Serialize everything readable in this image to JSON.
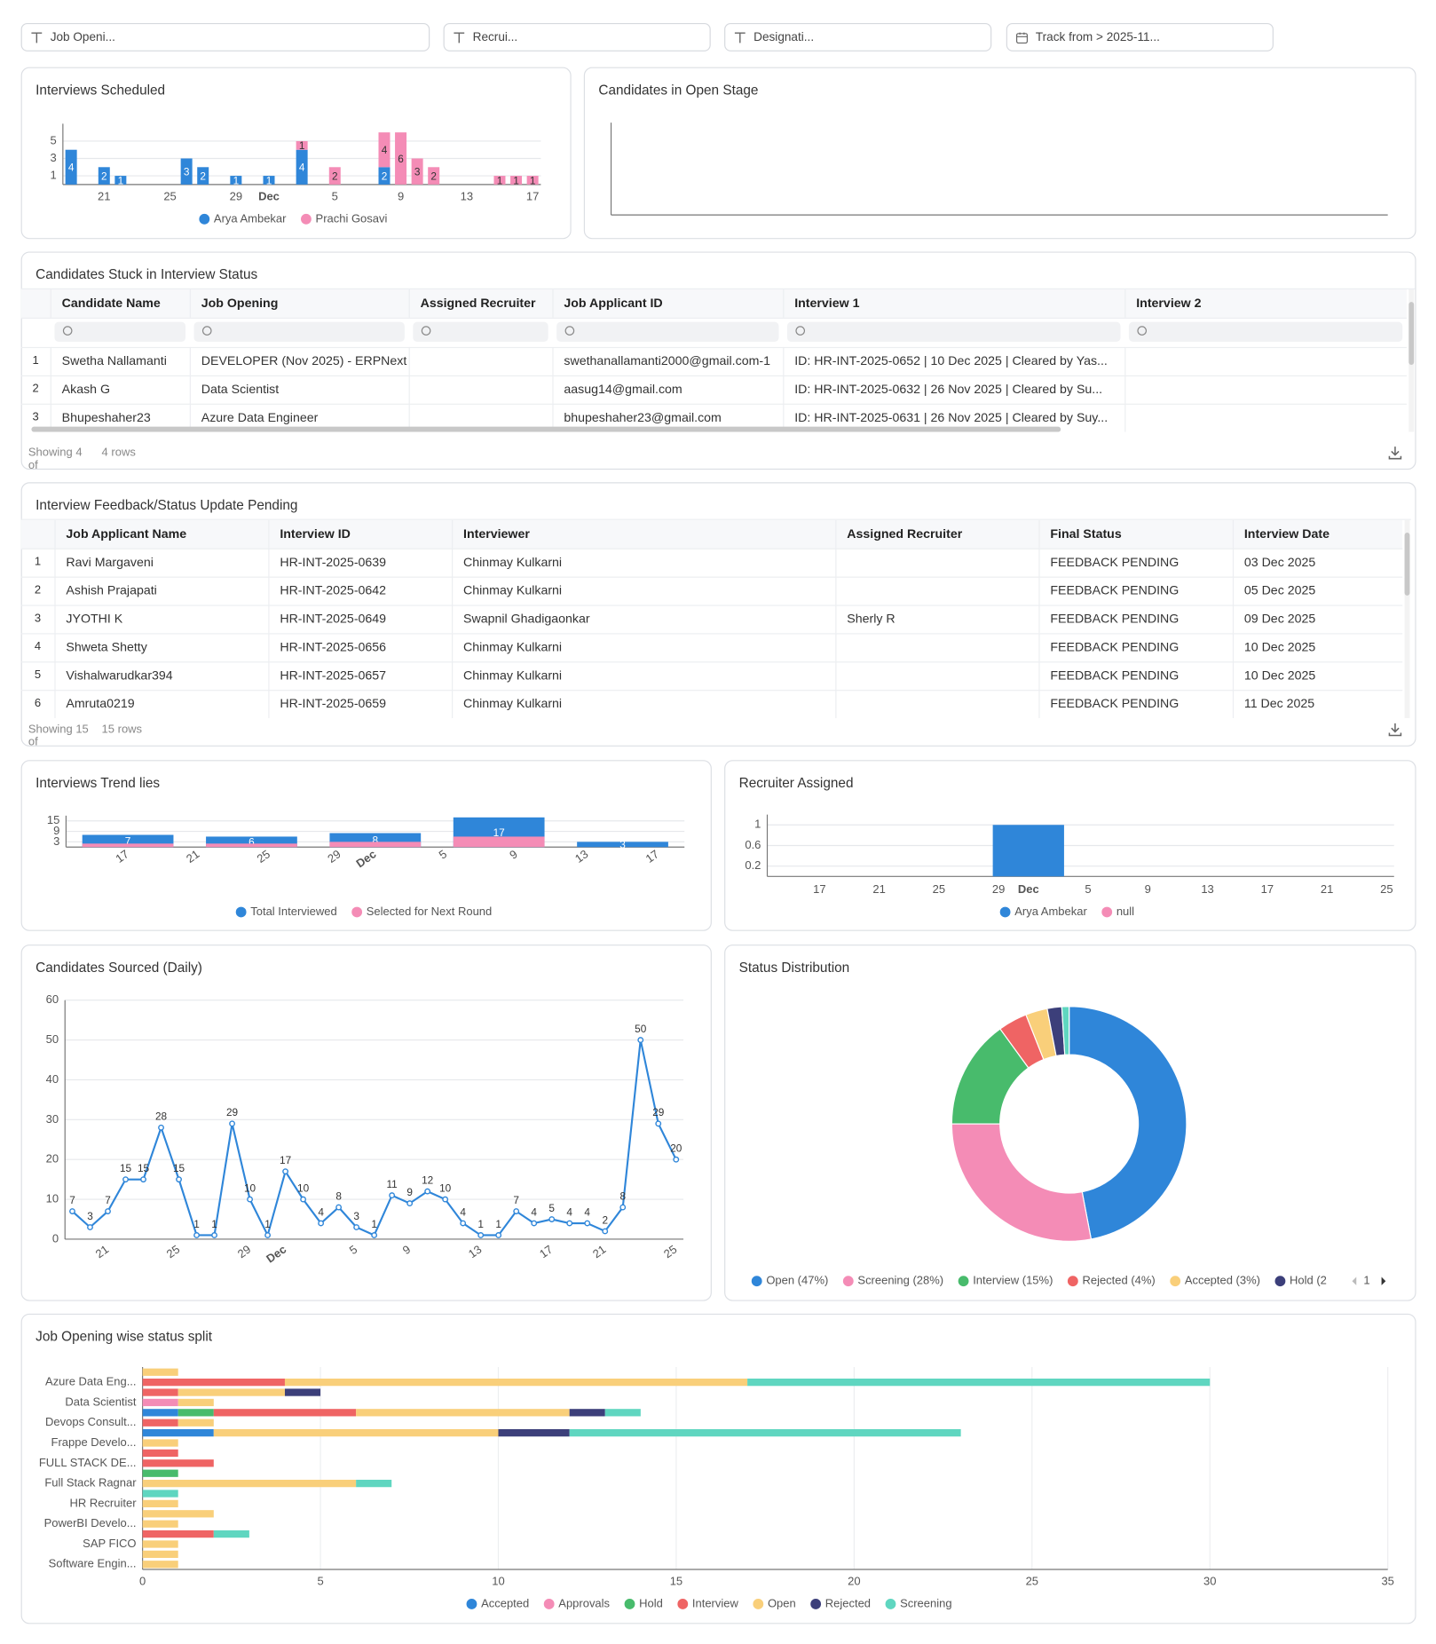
{
  "filters": [
    "Job Openi...",
    "Recrui...",
    "Designati...",
    "Track from > 2025-11..."
  ],
  "chart_data": [
    {
      "type": "bar",
      "title": "Interviews Scheduled",
      "stacked": true,
      "categories": [
        null,
        null,
        "21",
        null,
        null,
        null,
        "25",
        null,
        null,
        null,
        "29",
        null,
        "Dec",
        null,
        null,
        null,
        "5",
        null,
        null,
        null,
        "9",
        null,
        null,
        null,
        "13",
        null,
        null,
        null,
        "17"
      ],
      "series": [
        {
          "name": "Arya Ambekar",
          "color": "#2f86d9",
          "data_labels": true,
          "values": [
            4,
            null,
            2,
            1,
            null,
            null,
            null,
            3,
            2,
            null,
            1,
            null,
            1,
            null,
            4,
            null,
            null,
            null,
            null,
            2,
            null,
            null,
            null,
            null,
            null,
            null,
            null,
            null,
            null
          ]
        },
        {
          "name": "Prachi Gosavi",
          "color": "#f48cb6",
          "data_labels": true,
          "values": [
            null,
            null,
            null,
            null,
            null,
            null,
            null,
            null,
            null,
            null,
            null,
            null,
            null,
            null,
            1,
            null,
            2,
            null,
            null,
            4,
            6,
            3,
            2,
            null,
            null,
            null,
            1,
            1,
            1
          ]
        }
      ],
      "ylim": [
        0,
        7
      ],
      "yticks": [
        1,
        3,
        5
      ],
      "grid": true
    },
    {
      "type": "bar",
      "title": "Candidates in Open Stage"
    },
    {
      "type": "bar",
      "title": "Interviews Trend lies",
      "categories": [
        null,
        null,
        null,
        "17",
        null,
        null,
        null,
        "21",
        null,
        null,
        null,
        "25",
        null,
        null,
        null,
        "29",
        null,
        "Dec",
        null,
        null,
        null,
        "5",
        null,
        null,
        null,
        "9",
        null,
        null,
        null,
        "13",
        null,
        null,
        null,
        "17",
        null
      ],
      "series": [
        {
          "name": "Total Interviewed",
          "color": "#2f86d9",
          "data_labels": true,
          "values": [
            null,
            null,
            null,
            7,
            null,
            null,
            null,
            null,
            null,
            null,
            6,
            null,
            null,
            null,
            null,
            null,
            null,
            8,
            null,
            null,
            null,
            null,
            null,
            null,
            17,
            null,
            null,
            null,
            null,
            null,
            null,
            3,
            null,
            null,
            null
          ]
        },
        {
          "name": "Selected for Next Round",
          "color": "#f48cb6",
          "values": [
            null,
            null,
            null,
            2,
            null,
            null,
            null,
            null,
            null,
            null,
            2,
            null,
            null,
            null,
            null,
            null,
            null,
            3,
            null,
            null,
            null,
            null,
            null,
            null,
            6,
            null,
            null,
            null,
            null,
            null,
            null,
            null,
            null,
            null,
            null
          ]
        }
      ],
      "ylim": [
        0,
        18
      ],
      "yticks": [
        3,
        9,
        15
      ],
      "grid": true
    },
    {
      "type": "bar",
      "title": "Recruiter Assigned",
      "categories": [
        null,
        null,
        null,
        "17",
        null,
        null,
        null,
        "21",
        null,
        null,
        null,
        "25",
        null,
        null,
        null,
        "29",
        null,
        "Dec",
        null,
        null,
        null,
        "5",
        null,
        null,
        null,
        "9",
        null,
        null,
        null,
        "13",
        null,
        null,
        null,
        "17",
        null,
        null,
        null,
        "21",
        null,
        null,
        null,
        "25"
      ],
      "series": [
        {
          "name": "Arya Ambekar",
          "color": "#2f86d9",
          "values": [
            null,
            null,
            null,
            null,
            null,
            null,
            null,
            null,
            null,
            null,
            null,
            null,
            null,
            null,
            null,
            null,
            null,
            1,
            null,
            null,
            null,
            null,
            null,
            null,
            null,
            null,
            null,
            null,
            null,
            null,
            null,
            null,
            null,
            null,
            null,
            null,
            null,
            null,
            null,
            null,
            null,
            null
          ]
        },
        {
          "name": "null",
          "color": "#f48cb6",
          "values": [
            null,
            null,
            null,
            null,
            null,
            null,
            null,
            null,
            null,
            null,
            null,
            null,
            null,
            null,
            null,
            null,
            null,
            null,
            null,
            null,
            null,
            null,
            null,
            null,
            null,
            null,
            null,
            null,
            null,
            null,
            null,
            null,
            null,
            null,
            null,
            null,
            null,
            null,
            null,
            null,
            null,
            null
          ]
        }
      ],
      "ylim": [
        0,
        1.2
      ],
      "yticks": [
        0.2,
        0.6,
        1
      ],
      "grid": true
    },
    {
      "type": "line",
      "title": "Candidates Sourced (Daily)",
      "color": "#2f86d9",
      "data_labels": true,
      "categories": [
        null,
        null,
        "21",
        null,
        null,
        null,
        "25",
        null,
        null,
        null,
        "29",
        null,
        "Dec",
        null,
        null,
        null,
        "5",
        null,
        null,
        "9",
        null,
        null,
        null,
        "13",
        null,
        null,
        null,
        "17",
        null,
        null,
        "21",
        null,
        null,
        null,
        "25"
      ],
      "values": [
        7,
        3,
        7,
        15,
        15,
        28,
        15,
        1,
        1,
        29,
        10,
        1,
        17,
        10,
        4,
        8,
        3,
        1,
        11,
        9,
        12,
        10,
        4,
        1,
        1,
        7,
        4,
        5,
        4,
        4,
        2,
        8,
        50,
        29,
        20
      ],
      "ylim": [
        0,
        60
      ],
      "yticks": [
        0,
        10,
        20,
        30,
        40,
        50,
        60
      ],
      "grid": true
    },
    {
      "type": "donut",
      "title": "Status Distribution",
      "categories": [
        "Open (47%)",
        "Screening (28%)",
        "Interview (15%)",
        "Rejected (4%)",
        "Accepted (3%)",
        "Hold (2",
        null
      ],
      "values": [
        47,
        28,
        15,
        4,
        3,
        2,
        1
      ],
      "colors": [
        "#2f86d9",
        "#f48cb6",
        "#48bb6c",
        "#ef6464",
        "#f9cf7a",
        "#3c3f7a",
        "#5fd6c0"
      ],
      "legend_page": 1
    },
    {
      "type": "bar",
      "orientation": "horizontal",
      "stacked": true,
      "title": "Job Opening wise status split",
      "categories": [
        null,
        "Azure Data Eng...",
        null,
        "Data Scientist",
        null,
        "Devops Consult...",
        null,
        "Frappe Develo...",
        null,
        "FULL STACK DE...",
        null,
        "Full Stack Ragnar",
        null,
        "HR Recruiter",
        null,
        "PowerBI Develo...",
        null,
        "SAP FICO",
        null,
        "Software Engin..."
      ],
      "series": [
        {
          "name": "Accepted",
          "color": "#2f86d9",
          "values": [
            null,
            null,
            null,
            null,
            1,
            null,
            2,
            null,
            null,
            null,
            null,
            null,
            null,
            null,
            null,
            null,
            null,
            null,
            null,
            null
          ]
        },
        {
          "name": "Approvals",
          "color": "#f48cb6",
          "values": [
            null,
            null,
            null,
            1,
            null,
            null,
            null,
            null,
            null,
            null,
            null,
            null,
            null,
            null,
            null,
            null,
            null,
            null,
            null,
            null
          ]
        },
        {
          "name": "Hold",
          "color": "#48bb6c",
          "values": [
            null,
            null,
            null,
            null,
            1,
            null,
            null,
            null,
            null,
            null,
            1,
            null,
            null,
            null,
            null,
            null,
            null,
            null,
            null,
            null
          ]
        },
        {
          "name": "Interview",
          "color": "#ef6464",
          "values": [
            null,
            4,
            1,
            null,
            4,
            1,
            null,
            null,
            1,
            2,
            null,
            null,
            null,
            null,
            null,
            null,
            2,
            null,
            null,
            null
          ]
        },
        {
          "name": "Open",
          "color": "#f9cf7a",
          "values": [
            1,
            13,
            3,
            1,
            6,
            1,
            8,
            1,
            null,
            null,
            null,
            6,
            null,
            1,
            2,
            1,
            null,
            1,
            1,
            1
          ]
        },
        {
          "name": "Rejected",
          "color": "#3c3f7a",
          "values": [
            null,
            null,
            1,
            null,
            1,
            null,
            2,
            null,
            null,
            null,
            null,
            null,
            null,
            null,
            null,
            null,
            null,
            null,
            null,
            null
          ]
        },
        {
          "name": "Screening",
          "color": "#5fd6c0",
          "values": [
            null,
            13,
            null,
            null,
            1,
            null,
            11,
            null,
            null,
            null,
            null,
            1,
            1,
            null,
            null,
            null,
            1,
            null,
            null,
            null
          ]
        }
      ],
      "xlim": [
        0,
        35
      ],
      "xticks": [
        0,
        5,
        10,
        15,
        20,
        25,
        30,
        35
      ],
      "grid": true
    }
  ],
  "tables": [
    {
      "title": "Candidates Stuck in Interview Status",
      "columns": [
        "Candidate Name",
        "Job Opening",
        "Assigned Recruiter",
        "Job Applicant ID",
        "Interview 1",
        "Interview 2"
      ],
      "rows": [
        [
          1,
          "Swetha Nallamanti",
          "DEVELOPER (Nov 2025) - ERPNext",
          null,
          "swethanallamanti2000@gmail.com-1",
          "ID: HR-INT-2025-0652 | 10 Dec 2025 | Cleared by Yas...",
          null
        ],
        [
          2,
          "Akash G",
          "Data Scientist",
          null,
          "aasug14@gmail.com",
          "ID: HR-INT-2025-0632 | 26 Nov 2025 | Cleared by Su...",
          null
        ],
        [
          3,
          "Bhupeshaher23",
          "Azure Data Engineer",
          null,
          "bhupeshaher23@gmail.com",
          "ID: HR-INT-2025-0631 | 26 Nov 2025 | Cleared by Suy...",
          null
        ]
      ],
      "footer": {
        "showing": "Showing 4 of",
        "rows": "4 rows"
      }
    },
    {
      "title": "Interview Feedback/Status Update Pending",
      "columns": [
        "Job Applicant Name",
        "Interview ID",
        "Interviewer",
        "Assigned Recruiter",
        "Final Status",
        "Interview Date"
      ],
      "rows": [
        [
          1,
          "Ravi Margaveni",
          "HR-INT-2025-0639",
          "Chinmay Kulkarni",
          null,
          "FEEDBACK PENDING",
          "03 Dec 2025"
        ],
        [
          2,
          "Ashish Prajapati",
          "HR-INT-2025-0642",
          "Chinmay Kulkarni",
          null,
          "FEEDBACK PENDING",
          "05 Dec 2025"
        ],
        [
          3,
          "JYOTHI K",
          "HR-INT-2025-0649",
          "Swapnil Ghadigaonkar",
          "Sherly R",
          "FEEDBACK PENDING",
          "09 Dec 2025"
        ],
        [
          4,
          "Shweta Shetty",
          "HR-INT-2025-0656",
          "Chinmay Kulkarni",
          null,
          "FEEDBACK PENDING",
          "10 Dec 2025"
        ],
        [
          5,
          "Vishalwarudkar394",
          "HR-INT-2025-0657",
          "Chinmay Kulkarni",
          null,
          "FEEDBACK PENDING",
          "10 Dec 2025"
        ],
        [
          6,
          "Amruta0219",
          "HR-INT-2025-0659",
          "Chinmay Kulkarni",
          null,
          "FEEDBACK PENDING",
          "11 Dec 2025"
        ]
      ],
      "footer": {
        "showing": "Showing 15 of",
        "rows": "15 rows"
      }
    }
  ]
}
